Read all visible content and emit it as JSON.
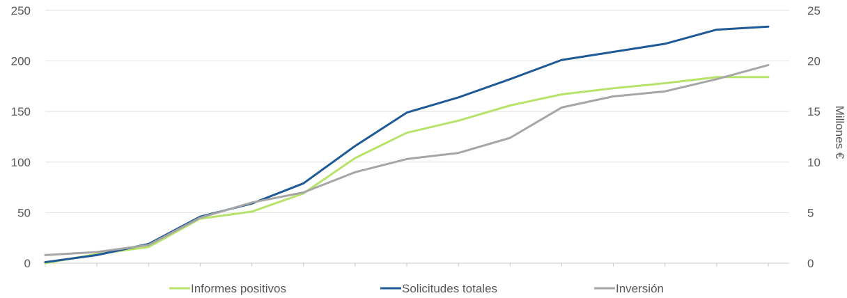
{
  "chart_data": {
    "type": "line",
    "x": [
      1,
      2,
      3,
      4,
      5,
      6,
      7,
      8,
      9,
      10,
      11,
      12,
      13,
      14,
      15
    ],
    "grid": true,
    "legend_position": "bottom",
    "y_left": {
      "min": 0,
      "max": 250,
      "ticks": [
        "0",
        "50",
        "100",
        "150",
        "200",
        "250"
      ]
    },
    "y_right": {
      "min": 0,
      "max": 25,
      "ticks": [
        "0",
        "5",
        "10",
        "15",
        "20",
        "25"
      ],
      "label": "Millones €"
    },
    "series": [
      {
        "name": "Informes positivos",
        "axis": "left",
        "color": "#b7e36b",
        "values": [
          0,
          9,
          16,
          44,
          51,
          69,
          104,
          129,
          141,
          156,
          167,
          173,
          178,
          184,
          184
        ]
      },
      {
        "name": "Solicitudes totales",
        "axis": "left",
        "color": "#1f5a96",
        "values": [
          1,
          8,
          19,
          46,
          59,
          79,
          116,
          149,
          164,
          182,
          201,
          209,
          217,
          231,
          234
        ]
      },
      {
        "name": "Inversión",
        "axis": "right",
        "color": "#a6a6a6",
        "values": [
          0.8,
          1.1,
          1.8,
          4.5,
          6.0,
          7.0,
          9.0,
          10.3,
          10.9,
          12.4,
          15.4,
          16.5,
          17.0,
          18.2,
          19.6
        ]
      }
    ]
  }
}
